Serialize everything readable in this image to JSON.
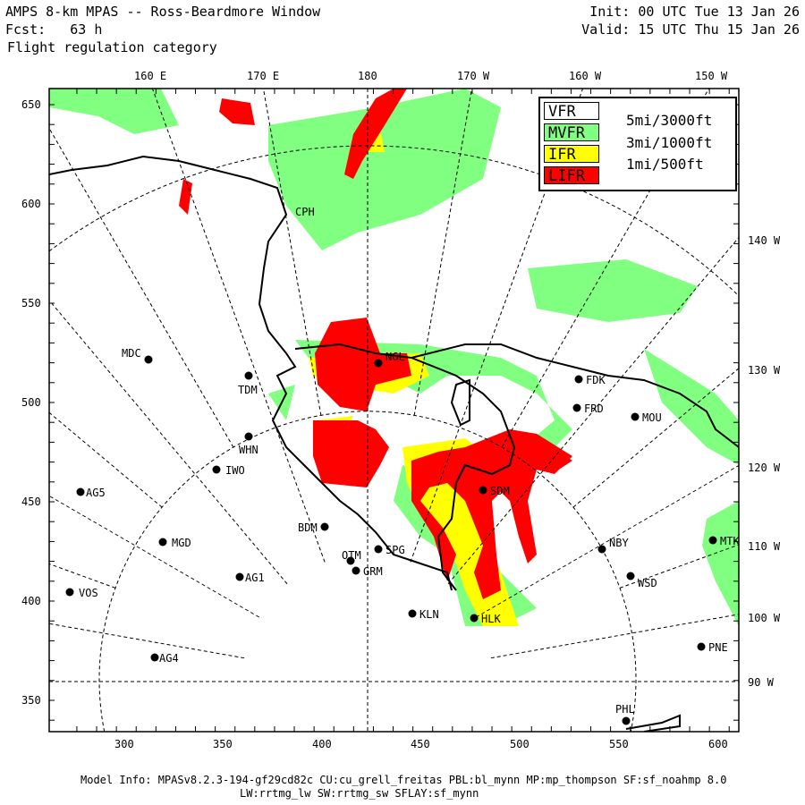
{
  "header": {
    "title": "AMPS 8-km MPAS -- Ross-Beardmore Window",
    "fcst": "Fcst:   63 h",
    "field": "Flight regulation category",
    "init": "Init: 00 UTC Tue 13 Jan 26",
    "valid": "Valid: 15 UTC Thu 15 Jan 26"
  },
  "top_lon_labels": [
    "160 E",
    "170 E",
    "180",
    "170 W",
    "160 W",
    "150 W"
  ],
  "right_lon_labels": [
    "140 W",
    "130 W",
    "120 W",
    "110 W",
    "100 W",
    "90 W"
  ],
  "x_ticks": [
    "300",
    "350",
    "400",
    "450",
    "500",
    "550",
    "600"
  ],
  "y_ticks": [
    "650",
    "600",
    "550",
    "500",
    "450",
    "400",
    "350"
  ],
  "legend": {
    "items": [
      {
        "label": "VFR",
        "color": "#ffffff"
      },
      {
        "label": "MVFR",
        "color": "#80ff80"
      },
      {
        "label": "IFR",
        "color": "#ffff00"
      },
      {
        "label": "LIFR",
        "color": "#ff0000"
      }
    ],
    "thresholds": [
      "5mi/3000ft",
      "3mi/1000ft",
      "1mi/500ft"
    ]
  },
  "stations": [
    "MDC",
    "TDM",
    "WHN",
    "IWO",
    "AG5",
    "MGD",
    "AG1",
    "VOS",
    "AG4",
    "BDM",
    "OTM",
    "GRM",
    "SPG",
    "KLN",
    "HLK",
    "SDM",
    "NGL",
    "FDK",
    "FRD",
    "MOU",
    "NBY",
    "WSD",
    "MTK",
    "PNE",
    "PHL",
    "CPH"
  ],
  "footer": {
    "line1": "Model Info: MPASv8.2.3-194-gf29cd82c CU:cu_grell_freitas PBL:bl_mynn MP:mp_thompson SF:sf_noahmp 8.0",
    "line2": "LW:rrtmg_lw SW:rrtmg_sw SFLAY:sf_mynn"
  }
}
